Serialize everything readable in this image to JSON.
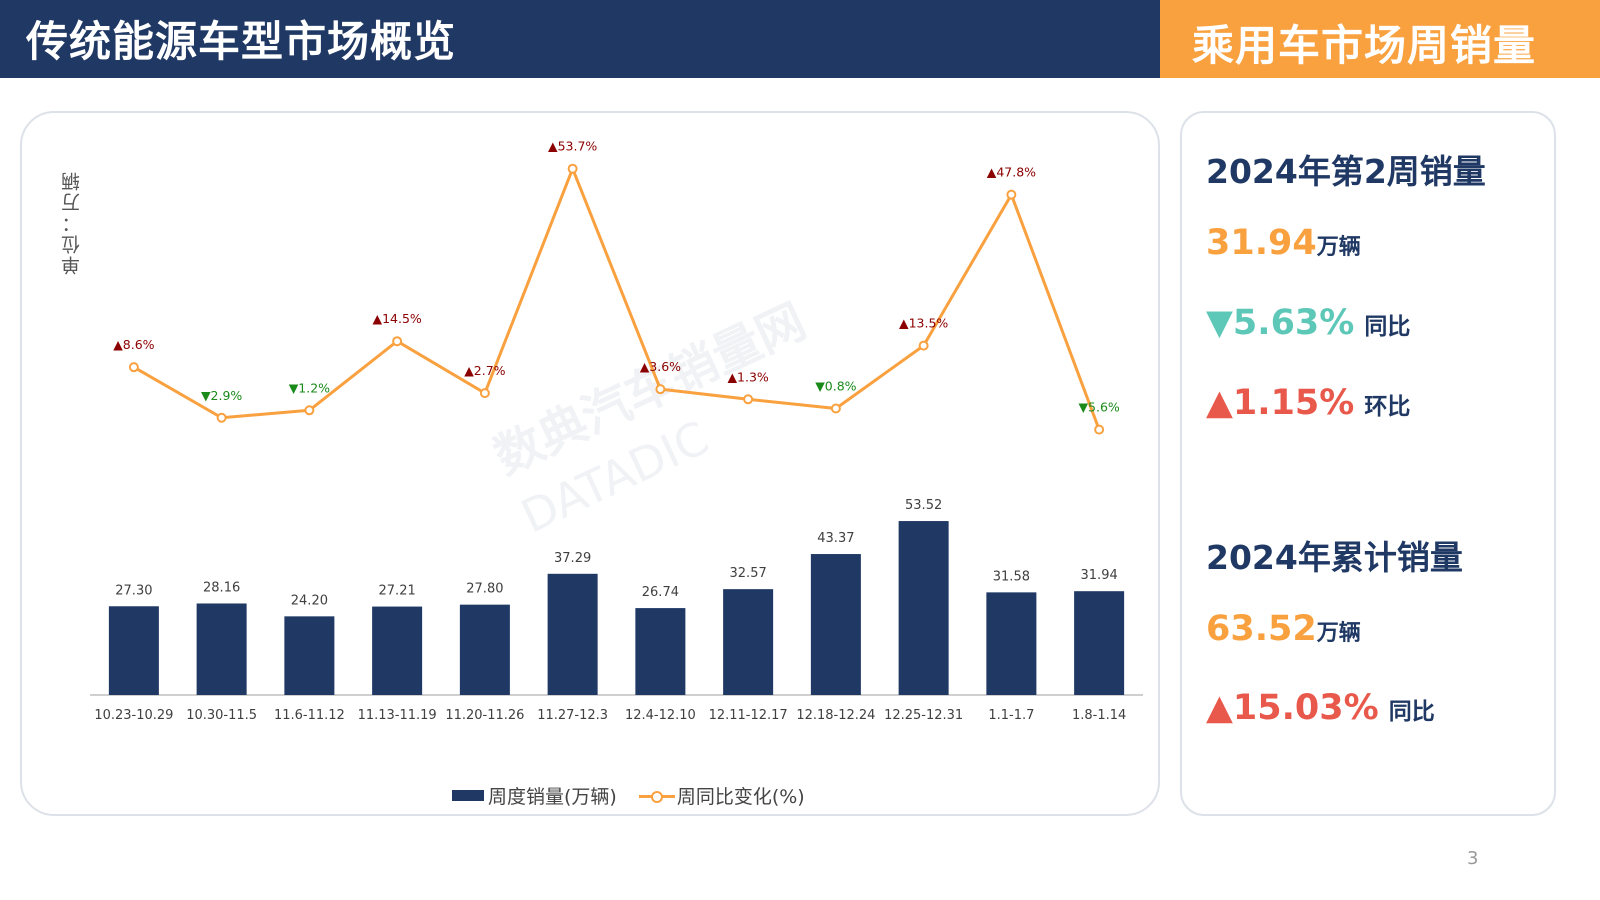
{
  "header": {
    "title": "传统能源车型市场概览",
    "section": "乘用车市场周销量"
  },
  "chart": {
    "unit_label": "单位：万辆"
  },
  "chart_data": {
    "type": "bar",
    "categories": [
      "10.23-10.29",
      "10.30-11.5",
      "11.6-11.12",
      "11.13-11.19",
      "11.20-11.26",
      "11.27-12.3",
      "12.4-12.10",
      "12.11-12.17",
      "12.18-12.24",
      "12.25-12.31",
      "1.1-1.7",
      "1.8-1.14"
    ],
    "series": [
      {
        "name": "周度销量(万辆)",
        "type": "bar",
        "color": "#1f3864",
        "values": [
          27.3,
          28.16,
          24.2,
          27.21,
          27.8,
          37.29,
          26.74,
          32.57,
          43.37,
          53.52,
          31.58,
          31.94
        ],
        "labels": [
          "27.30",
          "28.16",
          "24.20",
          "27.21",
          "27.80",
          "37.29",
          "26.74",
          "32.57",
          "43.37",
          "53.52",
          "31.58",
          "31.94"
        ]
      },
      {
        "name": "周同比变化(%)",
        "type": "line",
        "color": "#f9a03f",
        "values": [
          8.6,
          -2.9,
          -1.2,
          14.5,
          2.7,
          53.7,
          3.6,
          1.3,
          -0.8,
          13.5,
          47.8,
          -5.6
        ],
        "labels": [
          "▲8.6%",
          "▼2.9%",
          "▼1.2%",
          "▲14.5%",
          "▲2.7%",
          "▲53.7%",
          "▲3.6%",
          "▲1.3%",
          "▼0.8%",
          "▲13.5%",
          "▲47.8%",
          "▼5.6%"
        ]
      }
    ],
    "legend_position": "bottom",
    "grid": false
  },
  "watermark": {
    "cn": "数典汽车销量网",
    "en": "DATADIC"
  },
  "side": {
    "week_title": "2024年第2周销量",
    "week_value": "31.94",
    "week_unit": "万辆",
    "week_yoy": "▼5.63%",
    "week_yoy_label": "同比",
    "week_mom": "▲1.15%",
    "week_mom_label": "环比",
    "ytd_title": "2024年累计销量",
    "ytd_value": "63.52",
    "ytd_unit": "万辆",
    "ytd_yoy": "▲15.03%",
    "ytd_yoy_label": "同比"
  },
  "page_number": "3",
  "colors": {
    "navy": "#1f3864",
    "orange": "#f9a03f",
    "up": "#8b0000",
    "down": "#1a8a1a",
    "teal": "#5ec8b8",
    "red": "#e8594b"
  }
}
